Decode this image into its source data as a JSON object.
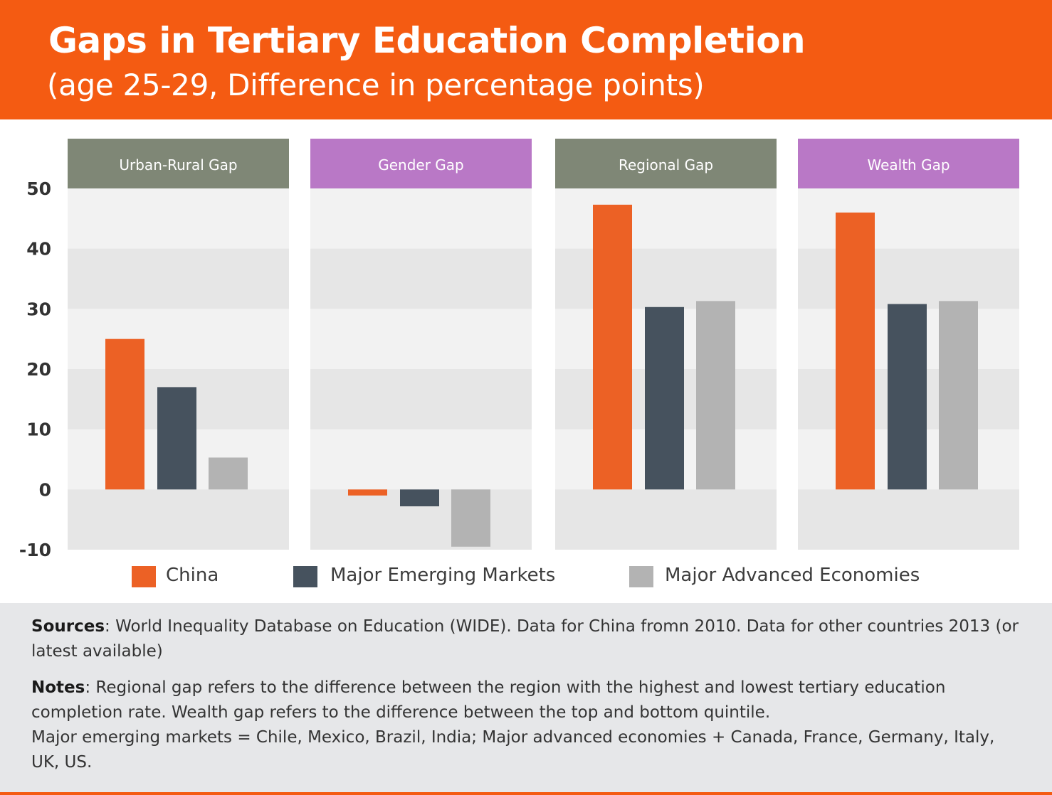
{
  "header": {
    "title": "Gaps in Tertiary Education Completion",
    "subtitle": "(age 25-29, Difference in percentage points)"
  },
  "chart_data": {
    "type": "bar",
    "ylim": [
      -10,
      50
    ],
    "yticks": [
      50,
      40,
      30,
      20,
      10,
      0,
      -10
    ],
    "grid": true,
    "categories": [
      "Urban-Rural Gap",
      "Gender Gap",
      "Regional Gap",
      "Wealth Gap"
    ],
    "panel_colors": [
      "#7F8776",
      "#B978C6",
      "#7F8776",
      "#B978C6"
    ],
    "series": [
      {
        "name": "China",
        "color": "#EC6125",
        "values": [
          25,
          -1,
          47.3,
          46
        ]
      },
      {
        "name": "Major Emerging Markets",
        "color": "#46525E",
        "values": [
          17,
          -2.8,
          30.3,
          30.8
        ]
      },
      {
        "name": "Major Advanced Economies",
        "color": "#B3B3B3",
        "values": [
          5.3,
          -9.5,
          31.3,
          31.3
        ]
      }
    ],
    "legend_position": "bottom"
  },
  "footer": {
    "sources_label": "Sources",
    "sources_text": ": World Inequality Database on Education (WIDE). Data for China fromn 2010. Data for other countries 2013 (or latest available)",
    "notes_label": "Notes",
    "notes_text": ": Regional gap refers to the difference between the region with the highest and lowest tertiary education completion rate. Wealth gap refers to the difference between the top and bottom quintile.",
    "notes_text_2": "Major emerging markets = Chile, Mexico, Brazil, India; Major advanced economies + Canada, France, Germany, Italy, UK, US."
  }
}
